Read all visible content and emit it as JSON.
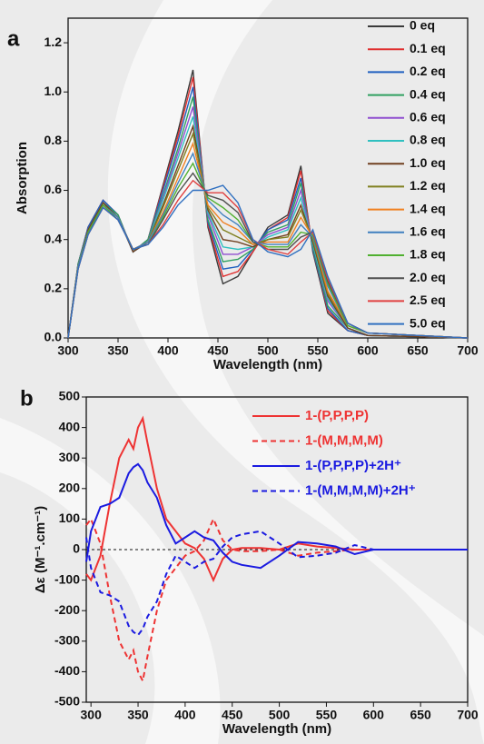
{
  "chart_data": [
    {
      "type": "line",
      "panel_label": "a",
      "xlabel": "Wavelength (nm)",
      "ylabel": "Absorption",
      "xlim": [
        300,
        700
      ],
      "xticks": [
        300,
        350,
        400,
        450,
        500,
        550,
        600,
        650,
        700
      ],
      "ylim": [
        0,
        1.3
      ],
      "yticks": [
        {
          "value": 0,
          "label": "0.0"
        },
        0.2,
        0.4,
        0.6,
        0.8,
        {
          "value": 1,
          "label": "1.0"
        },
        1.2
      ],
      "legend": "top-right",
      "legend_text_colored": false,
      "x": [
        300,
        310,
        320,
        335,
        350,
        365,
        380,
        395,
        410,
        425,
        440,
        455,
        470,
        485,
        500,
        520,
        533,
        545,
        560,
        580,
        600,
        700
      ],
      "series": [
        {
          "name": "0 eq",
          "color": "#3a3a3a",
          "dashed": false,
          "values": [
            0,
            0.3,
            0.45,
            0.56,
            0.5,
            0.35,
            0.4,
            0.62,
            0.84,
            1.09,
            0.45,
            0.22,
            0.25,
            0.35,
            0.45,
            0.5,
            0.7,
            0.35,
            0.1,
            0.03,
            0.01,
            0
          ]
        },
        {
          "name": "0.1 eq",
          "color": "#e03030",
          "dashed": false,
          "values": [
            0,
            0.3,
            0.45,
            0.56,
            0.5,
            0.35,
            0.4,
            0.61,
            0.82,
            1.06,
            0.46,
            0.25,
            0.27,
            0.35,
            0.44,
            0.49,
            0.68,
            0.36,
            0.11,
            0.03,
            0.01,
            0
          ]
        },
        {
          "name": "0.2 eq",
          "color": "#2060c0",
          "dashed": false,
          "values": [
            0,
            0.3,
            0.45,
            0.56,
            0.5,
            0.35,
            0.4,
            0.6,
            0.8,
            1.02,
            0.47,
            0.28,
            0.29,
            0.36,
            0.44,
            0.48,
            0.65,
            0.36,
            0.12,
            0.03,
            0.01,
            0
          ]
        },
        {
          "name": "0.4 eq",
          "color": "#30a060",
          "dashed": false,
          "values": [
            0,
            0.3,
            0.44,
            0.55,
            0.5,
            0.35,
            0.4,
            0.58,
            0.77,
            0.98,
            0.48,
            0.31,
            0.32,
            0.36,
            0.43,
            0.46,
            0.63,
            0.37,
            0.13,
            0.04,
            0.01,
            0
          ]
        },
        {
          "name": "0.6 eq",
          "color": "#9050d0",
          "dashed": false,
          "values": [
            0,
            0.29,
            0.44,
            0.55,
            0.49,
            0.35,
            0.39,
            0.57,
            0.75,
            0.94,
            0.5,
            0.34,
            0.34,
            0.37,
            0.42,
            0.45,
            0.6,
            0.38,
            0.15,
            0.04,
            0.01,
            0
          ]
        },
        {
          "name": "0.8 eq",
          "color": "#30c0c0",
          "dashed": false,
          "values": [
            0,
            0.29,
            0.44,
            0.55,
            0.49,
            0.35,
            0.39,
            0.56,
            0.73,
            0.9,
            0.51,
            0.37,
            0.36,
            0.37,
            0.41,
            0.44,
            0.57,
            0.38,
            0.16,
            0.04,
            0.01,
            0
          ]
        },
        {
          "name": "1.0 eq",
          "color": "#704020",
          "dashed": false,
          "values": [
            0,
            0.29,
            0.44,
            0.55,
            0.49,
            0.35,
            0.39,
            0.54,
            0.7,
            0.86,
            0.52,
            0.4,
            0.39,
            0.37,
            0.4,
            0.42,
            0.54,
            0.39,
            0.17,
            0.04,
            0.01,
            0
          ]
        },
        {
          "name": "1.2 eq",
          "color": "#808020",
          "dashed": false,
          "values": [
            0,
            0.29,
            0.43,
            0.54,
            0.49,
            0.36,
            0.39,
            0.53,
            0.68,
            0.83,
            0.53,
            0.44,
            0.41,
            0.38,
            0.4,
            0.41,
            0.52,
            0.4,
            0.18,
            0.05,
            0.02,
            0
          ]
        },
        {
          "name": "1.4 eq",
          "color": "#f08020",
          "dashed": false,
          "values": [
            0,
            0.29,
            0.43,
            0.54,
            0.49,
            0.36,
            0.39,
            0.51,
            0.65,
            0.79,
            0.54,
            0.47,
            0.44,
            0.38,
            0.39,
            0.39,
            0.49,
            0.41,
            0.19,
            0.05,
            0.02,
            0
          ]
        },
        {
          "name": "1.6 eq",
          "color": "#4080c0",
          "dashed": false,
          "values": [
            0,
            0.29,
            0.43,
            0.54,
            0.49,
            0.36,
            0.39,
            0.5,
            0.63,
            0.75,
            0.56,
            0.5,
            0.46,
            0.39,
            0.38,
            0.38,
            0.46,
            0.41,
            0.21,
            0.05,
            0.02,
            0
          ]
        },
        {
          "name": "1.8 eq",
          "color": "#50b030",
          "dashed": false,
          "values": [
            0,
            0.28,
            0.43,
            0.54,
            0.48,
            0.36,
            0.38,
            0.49,
            0.61,
            0.71,
            0.57,
            0.53,
            0.48,
            0.39,
            0.37,
            0.37,
            0.43,
            0.42,
            0.22,
            0.05,
            0.02,
            0
          ]
        },
        {
          "name": "2.0 eq",
          "color": "#505050",
          "dashed": false,
          "values": [
            0,
            0.28,
            0.42,
            0.53,
            0.48,
            0.36,
            0.38,
            0.48,
            0.59,
            0.67,
            0.58,
            0.56,
            0.51,
            0.39,
            0.36,
            0.36,
            0.41,
            0.43,
            0.23,
            0.06,
            0.02,
            0
          ]
        },
        {
          "name": "2.5 eq",
          "color": "#e04040",
          "dashed": false,
          "values": [
            0,
            0.28,
            0.42,
            0.53,
            0.48,
            0.36,
            0.38,
            0.46,
            0.56,
            0.64,
            0.59,
            0.59,
            0.53,
            0.4,
            0.36,
            0.34,
            0.39,
            0.43,
            0.24,
            0.06,
            0.02,
            0
          ]
        },
        {
          "name": "5.0 eq",
          "color": "#3070c0",
          "dashed": false,
          "values": [
            0,
            0.28,
            0.42,
            0.53,
            0.48,
            0.36,
            0.38,
            0.45,
            0.54,
            0.6,
            0.6,
            0.62,
            0.55,
            0.4,
            0.35,
            0.33,
            0.36,
            0.44,
            0.25,
            0.06,
            0.02,
            0
          ]
        }
      ]
    },
    {
      "type": "line",
      "panel_label": "b",
      "xlabel": "Wavelength (nm)",
      "ylabel": "Δε (M⁻¹.cm⁻¹)",
      "xlim": [
        295,
        700
      ],
      "xticks": [
        300,
        350,
        400,
        450,
        500,
        550,
        600,
        650,
        700
      ],
      "ylim": [
        -500,
        500
      ],
      "yticks": [
        -500,
        -400,
        -300,
        -200,
        -100,
        0,
        100,
        200,
        300,
        400,
        500
      ],
      "legend": "top-right",
      "legend_text_colored": true,
      "x": [
        295,
        300,
        310,
        320,
        330,
        340,
        345,
        350,
        355,
        360,
        370,
        380,
        390,
        400,
        410,
        420,
        430,
        440,
        450,
        460,
        480,
        500,
        520,
        540,
        560,
        580,
        600,
        650,
        700
      ],
      "series": [
        {
          "name": "1-(P,P,P,P)",
          "color": "#ee3333",
          "dashed": false,
          "values": [
            -80,
            -100,
            -20,
            150,
            300,
            360,
            330,
            400,
            430,
            350,
            200,
            100,
            60,
            20,
            5,
            -30,
            -100,
            -30,
            0,
            5,
            5,
            0,
            20,
            10,
            5,
            0,
            0,
            0,
            0
          ]
        },
        {
          "name": "1-(M,M,M,M)",
          "color": "#ee3333",
          "dashed": true,
          "values": [
            80,
            100,
            20,
            -150,
            -300,
            -360,
            -330,
            -400,
            -430,
            -350,
            -200,
            -100,
            -60,
            -20,
            -5,
            30,
            100,
            30,
            0,
            -5,
            -5,
            0,
            -20,
            -10,
            -5,
            0,
            0,
            0,
            0
          ]
        },
        {
          "name": "1-(P,P,P,P)+2H⁺",
          "color": "#1a1ae0",
          "dashed": false,
          "values": [
            -40,
            60,
            140,
            150,
            170,
            250,
            270,
            280,
            260,
            220,
            170,
            80,
            20,
            40,
            60,
            40,
            30,
            -10,
            -40,
            -50,
            -60,
            -20,
            25,
            20,
            10,
            -15,
            0,
            0,
            0
          ]
        },
        {
          "name": "1-(M,M,M,M)+2H⁺",
          "color": "#1a1ae0",
          "dashed": true,
          "values": [
            40,
            -60,
            -140,
            -150,
            -170,
            -250,
            -270,
            -280,
            -260,
            -220,
            -170,
            -80,
            -20,
            -40,
            -60,
            -40,
            -30,
            10,
            40,
            50,
            60,
            20,
            -25,
            -20,
            -10,
            15,
            0,
            0,
            0
          ]
        }
      ]
    }
  ]
}
